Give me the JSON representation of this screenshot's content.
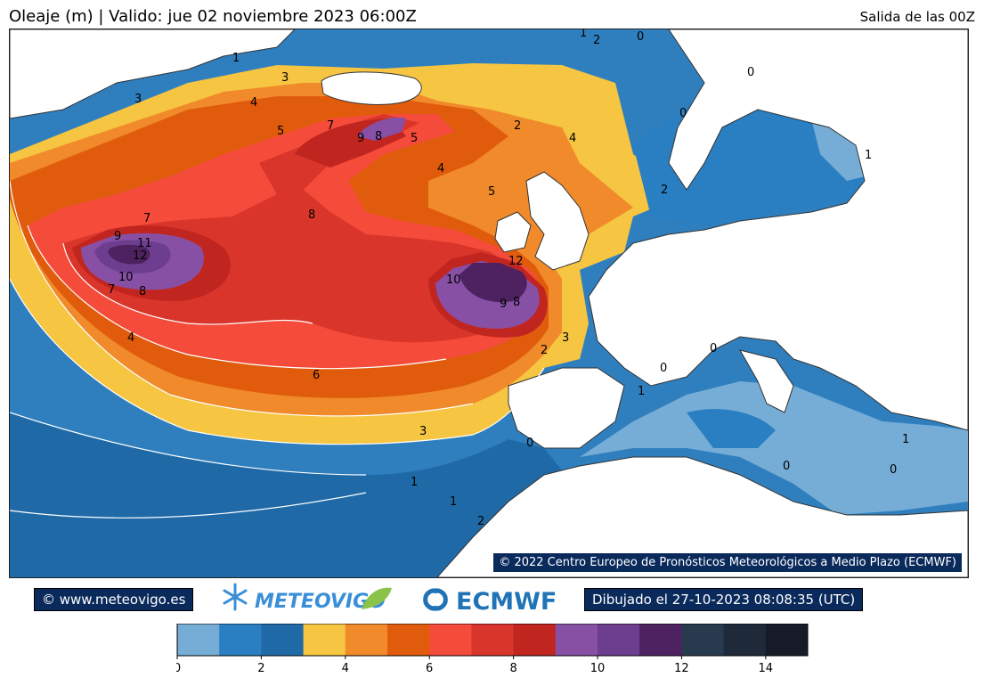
{
  "header": {
    "title": "Oleaje  (m) | Valido: jue 02 noviembre 2023 06:00Z",
    "run": "Salida de las 00Z"
  },
  "map": {
    "copyright": "© 2022 Centro Europeo de Pronósticos Meteorológicos a Medio Plazo (ECMWF)",
    "contour_labels": [
      "0",
      "1",
      "2",
      "3",
      "4",
      "5",
      "6",
      "7",
      "8",
      "9",
      "10",
      "11",
      "12"
    ]
  },
  "footer": {
    "site": "© www.meteovigo.es",
    "meteovigo_logo": "METEOVIGO",
    "ecmwf_logo": "ECMWF",
    "drawn": "Dibujado el 27-10-2023 08:08:35 (UTC)"
  },
  "colorbar": {
    "min": 0,
    "max": 15,
    "ticks": [
      "0",
      "2",
      "4",
      "6",
      "8",
      "10",
      "12",
      "14"
    ],
    "colors": [
      "#76add6",
      "#2a7fc2",
      "#1f6aa6",
      "#f6c542",
      "#f08a2a",
      "#e05c0c",
      "#f54b3a",
      "#d9352a",
      "#c1251f",
      "#8750a5",
      "#6d3d8f",
      "#4e2260",
      "#283a4e",
      "#1e2a3a",
      "#161b27"
    ]
  }
}
